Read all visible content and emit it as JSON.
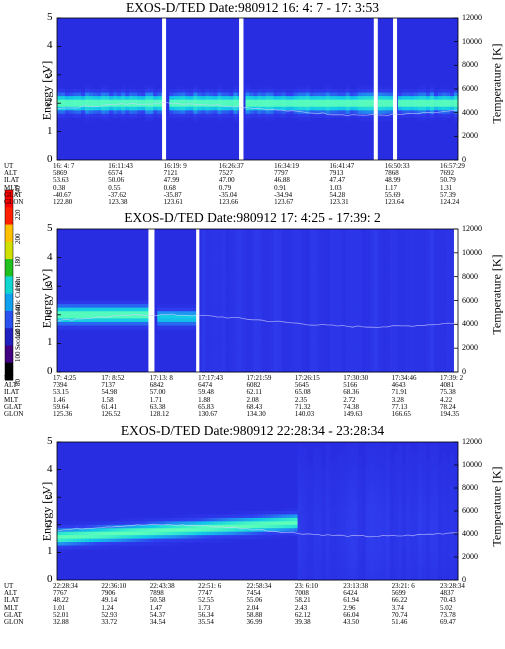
{
  "chart_data": [
    {
      "type": "heatmap",
      "title": "EXOS-D/TED  Date:980912  16: 4: 7 - 17: 3:53",
      "ylabel": "Energy [eV]",
      "y2label": "Temperature [K]",
      "ylim": [
        0,
        5
      ],
      "y2lim": [
        0,
        12000
      ],
      "yticks": [
        "0",
        "1",
        "2",
        "3",
        "4",
        "5"
      ],
      "y2ticks": [
        "0",
        "2000",
        "4000",
        "6000",
        "8000",
        "10000",
        "12000"
      ],
      "table_labels": [
        "UT",
        "ALT",
        "ILAT",
        "MLT",
        "GLAT",
        "GLON"
      ],
      "columns": [
        [
          "16: 4: 7",
          "5869",
          "53.63",
          "0.38",
          "-40.67",
          "122.80"
        ],
        [
          "16:11:43",
          "6574",
          "50.06",
          "0.55",
          "-37.62",
          "123.38"
        ],
        [
          "16:19: 9",
          "7121",
          "47.99",
          "0.68",
          "-35.87",
          "123.61"
        ],
        [
          "16:26:37",
          "7527",
          "47.00",
          "0.79",
          "-35.04",
          "123.66"
        ],
        [
          "16:34:19",
          "7797",
          "46.88",
          "0.91",
          "-34.94",
          "123.67"
        ],
        [
          "16:41:47",
          "7913",
          "47.47",
          "1.03",
          "54.28",
          "123.31"
        ],
        [
          "16:50:33",
          "7868",
          "48.99",
          "1.17",
          "55.69",
          "123.64"
        ],
        [
          "16:57:29",
          "7692",
          "50.79",
          "1.31",
          "57.39",
          "124.24"
        ]
      ],
      "band_center_ev": 2.0,
      "gaps": [
        [
          0.262,
          0.272
        ],
        [
          0.454,
          0.465
        ],
        [
          0.79,
          0.8
        ],
        [
          0.838,
          0.848
        ]
      ]
    },
    {
      "type": "heatmap",
      "title": "EXOS-D/TED  Date:980912  17: 4:25 - 17:39: 2",
      "ylabel": "Energy [eV]",
      "y2label": "Temperature [K]",
      "ylim": [
        0,
        5
      ],
      "y2lim": [
        0,
        12000
      ],
      "yticks": [
        "0",
        "1",
        "2",
        "3",
        "4",
        "5"
      ],
      "y2ticks": [
        "0",
        "2000",
        "4000",
        "6000",
        "8000",
        "10000",
        "12000"
      ],
      "table_labels": [
        "UT",
        "ALT",
        "ILAT",
        "MLT",
        "GLAT",
        "GLON"
      ],
      "columns": [
        [
          "17: 4:25",
          "7394",
          "53.15",
          "1.46",
          "59.64",
          "125.36"
        ],
        [
          "17: 8:52",
          "7137",
          "54.98",
          "1.58",
          "61.41",
          "126.52"
        ],
        [
          "17:13: 8",
          "6842",
          "57.00",
          "1.71",
          "63.38",
          "128.12"
        ],
        [
          "17:17:43",
          "6474",
          "59.48",
          "1.88",
          "65.83",
          "130.67"
        ],
        [
          "17:21:59",
          "6082",
          "62.11",
          "2.08",
          "68.43",
          "134.30"
        ],
        [
          "17:26:15",
          "5645",
          "65.08",
          "2.35",
          "71.32",
          "140.03"
        ],
        [
          "17:30:30",
          "5166",
          "68.36",
          "2.72",
          "74.38",
          "149.63"
        ],
        [
          "17:34:46",
          "4643",
          "71.91",
          "3.28",
          "77.13",
          "166.65"
        ],
        [
          "17:39: 2",
          "4081",
          "75.38",
          "4.22",
          "78.24",
          "194.35"
        ]
      ],
      "band_center_ev": 2.0,
      "gaps": [
        [
          0.0,
          0.0
        ],
        [
          0.228,
          0.243
        ],
        [
          0.347,
          0.355
        ],
        [
          0.99,
          1.0
        ]
      ]
    },
    {
      "type": "heatmap",
      "title": "EXOS-D/TED  Date:980912  22:28:34 - 23:28:34",
      "ylabel": "Energy [eV]",
      "y2label": "Temperature [K]",
      "ylim": [
        0,
        5
      ],
      "y2lim": [
        0,
        12000
      ],
      "yticks": [
        "0",
        "1",
        "2",
        "3",
        "4",
        "5"
      ],
      "y2ticks": [
        "0",
        "2000",
        "4000",
        "6000",
        "8000",
        "10000",
        "12000"
      ],
      "table_labels": [
        "UT",
        "ALT",
        "ILAT",
        "MLT",
        "GLAT",
        "GLON"
      ],
      "columns": [
        [
          "22:28:34",
          "7767",
          "48.22",
          "1.01",
          "52.01",
          "32.88"
        ],
        [
          "22:36:10",
          "7906",
          "49.14",
          "1.24",
          "52.93",
          "33.72"
        ],
        [
          "22:43:38",
          "7898",
          "50.58",
          "1.47",
          "54.37",
          "34.54"
        ],
        [
          "22:51: 6",
          "7747",
          "52.55",
          "1.73",
          "56.34",
          "35.54"
        ],
        [
          "22:58:34",
          "7454",
          "55.06",
          "2.04",
          "58.88",
          "36.99"
        ],
        [
          "23: 6:10",
          "7008",
          "58.21",
          "2.43",
          "62.12",
          "39.38"
        ],
        [
          "23:13:38",
          "6424",
          "61.94",
          "2.96",
          "66.04",
          "43.50"
        ],
        [
          "23:21: 6",
          "5699",
          "66.22",
          "3.74",
          "70.74",
          "51.46"
        ],
        [
          "23:28:34",
          "4837",
          "70.43",
          "5.02",
          "73.78",
          "69.47"
        ]
      ],
      "band_center_ev": 1.8
    }
  ],
  "colorbar": {
    "label": "Second Harmonic Current",
    "ticks": [
      "80",
      "100",
      "120",
      "140",
      "160",
      "180",
      "200",
      "220",
      "240"
    ]
  }
}
